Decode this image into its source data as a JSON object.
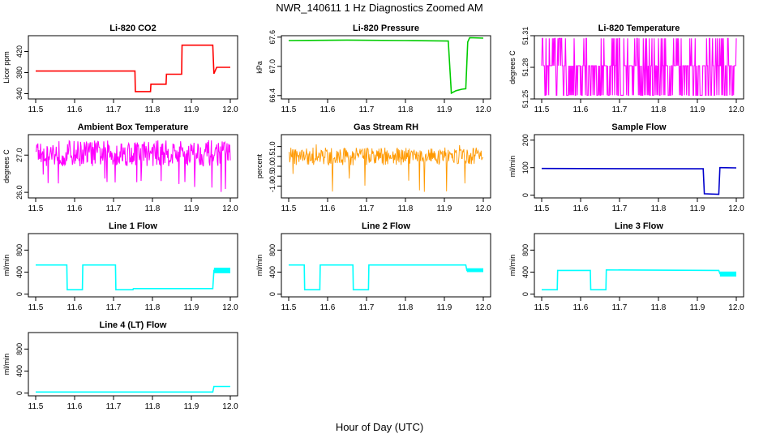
{
  "figure": {
    "title": "NWR_140611  1 Hz Diagnostics Zoomed AM",
    "xlabel": "Hour of Day (UTC)"
  },
  "chart_data": [
    {
      "type": "line",
      "title": "Li-820 CO2",
      "ylabel": "Licor ppm",
      "color": "#ff0000",
      "xlim": [
        11.5,
        12.0
      ],
      "ylim": [
        330,
        450
      ],
      "xticks": [
        "11.5",
        "11.6",
        "11.7",
        "11.8",
        "11.9",
        "12.0"
      ],
      "yticks": [
        {
          "v": 340,
          "label": "340"
        },
        {
          "v": 380,
          "label": "380"
        },
        {
          "v": 420,
          "label": "420"
        }
      ],
      "series": [
        {
          "x": [
            11.5,
            11.755,
            11.756,
            11.795,
            11.796,
            11.835,
            11.836,
            11.875,
            11.876,
            11.955,
            11.958,
            11.965,
            12.0
          ],
          "values": [
            383,
            383,
            344,
            344,
            358,
            358,
            377,
            377,
            432,
            432,
            378,
            390,
            390
          ]
        }
      ]
    },
    {
      "type": "line",
      "title": "Li-820 Pressure",
      "ylabel": "kPa",
      "color": "#00cc00",
      "xlim": [
        11.5,
        12.0
      ],
      "ylim": [
        66.33,
        67.63
      ],
      "xticks": [
        "11.5",
        "11.6",
        "11.7",
        "11.8",
        "11.9",
        "12.0"
      ],
      "yticks": [
        {
          "v": 66.4,
          "label": "66.4"
        },
        {
          "v": 67.0,
          "label": "67.0"
        },
        {
          "v": 67.6,
          "label": "67.6"
        }
      ],
      "series": [
        {
          "x": [
            11.5,
            11.65,
            11.8,
            11.91,
            11.918,
            11.93,
            11.945,
            11.955,
            11.96,
            11.965,
            12.0
          ],
          "values": [
            67.53,
            67.54,
            67.53,
            67.52,
            66.45,
            66.5,
            66.53,
            66.54,
            67.5,
            67.59,
            67.58
          ]
        }
      ]
    },
    {
      "type": "line",
      "title": "Li-820 Temperature",
      "ylabel": "degrees C",
      "color": "#ff00ff",
      "xlim": [
        11.5,
        12.0
      ],
      "ylim": [
        51.25,
        51.31
      ],
      "xticks": [
        "11.5",
        "11.6",
        "11.7",
        "11.8",
        "11.9",
        "12.0"
      ],
      "yticks": [
        {
          "v": 51.25,
          "label": "51.25"
        },
        {
          "v": 51.28,
          "label": "51.28"
        },
        {
          "v": 51.31,
          "label": "51.31"
        }
      ],
      "noise": {
        "levels": [
          51.2535,
          51.2815,
          51.3075
        ]
      }
    },
    {
      "type": "line",
      "title": "Ambient Box Temperature",
      "ylabel": "degrees C",
      "color": "#ff00ff",
      "xlim": [
        11.5,
        12.0
      ],
      "ylim": [
        25.85,
        27.55
      ],
      "xticks": [
        "11.5",
        "11.6",
        "11.7",
        "11.8",
        "11.9",
        "12.0"
      ],
      "yticks": [
        {
          "v": 26.0,
          "label": "26.0"
        },
        {
          "v": 27.0,
          "label": "27.0"
        }
      ],
      "noise": {
        "center": 27.05,
        "spread": 0.35,
        "spike_min": 26.0
      }
    },
    {
      "type": "scatter",
      "title": "Gas Stream RH",
      "ylabel": "percent",
      "color": "#ff9900",
      "xlim": [
        11.5,
        12.0
      ],
      "ylim": [
        -1.6,
        1.6
      ],
      "xticks": [
        "11.5",
        "11.6",
        "11.7",
        "11.8",
        "11.9",
        "12.0"
      ],
      "yticks": [
        {
          "v": -1.0,
          "label": "-1.0"
        },
        {
          "v": -0.5,
          "label": "-0.5"
        },
        {
          "v": 0.0,
          "label": "0.0"
        },
        {
          "v": 0.5,
          "label": "0.5"
        },
        {
          "v": 1.0,
          "label": "1.0"
        }
      ],
      "noise": {
        "center": 0.5,
        "spread": 0.45,
        "spike_min": -1.3,
        "spike_max": 1.3
      }
    },
    {
      "type": "line",
      "title": "Sample Flow",
      "ylabel": "ml/min",
      "color": "#0000cc",
      "xlim": [
        11.5,
        12.0
      ],
      "ylim": [
        -10,
        220
      ],
      "xticks": [
        "11.5",
        "11.6",
        "11.7",
        "11.8",
        "11.9",
        "12.0"
      ],
      "yticks": [
        {
          "v": 0,
          "label": "0"
        },
        {
          "v": 100,
          "label": "100"
        },
        {
          "v": 200,
          "label": "200"
        }
      ],
      "series": [
        {
          "x": [
            11.5,
            11.915,
            11.918,
            11.955,
            11.958,
            12.0
          ],
          "values": [
            97,
            96,
            5,
            3,
            100,
            99
          ]
        }
      ]
    },
    {
      "type": "line",
      "title": "Line 1 Flow",
      "ylabel": "ml/min",
      "color": "#00ffff",
      "xlim": [
        11.5,
        12.0
      ],
      "ylim": [
        -50,
        1100
      ],
      "xticks": [
        "11.5",
        "11.6",
        "11.7",
        "11.8",
        "11.9",
        "12.0"
      ],
      "yticks": [
        {
          "v": 0,
          "label": "0"
        },
        {
          "v": 400,
          "label": "400"
        },
        {
          "v": 800,
          "label": "800"
        }
      ],
      "series": [
        {
          "x": [
            11.5,
            11.58,
            11.581,
            11.62,
            11.621,
            11.705,
            11.706,
            11.75,
            11.751,
            11.955,
            11.958,
            12.0
          ],
          "values": [
            530,
            530,
            80,
            80,
            530,
            530,
            80,
            80,
            100,
            100,
            430,
            430
          ]
        }
      ],
      "band": {
        "from": 11.958,
        "to": 12.0,
        "low": 380,
        "high": 480
      }
    },
    {
      "type": "line",
      "title": "Line 2 Flow",
      "ylabel": "ml/min",
      "color": "#00ffff",
      "xlim": [
        11.5,
        12.0
      ],
      "ylim": [
        -50,
        1100
      ],
      "xticks": [
        "11.5",
        "11.6",
        "11.7",
        "11.8",
        "11.9",
        "12.0"
      ],
      "yticks": [
        {
          "v": 0,
          "label": "0"
        },
        {
          "v": 400,
          "label": "400"
        },
        {
          "v": 800,
          "label": "800"
        }
      ],
      "series": [
        {
          "x": [
            11.5,
            11.54,
            11.541,
            11.58,
            11.581,
            11.665,
            11.666,
            11.705,
            11.706,
            11.955,
            11.958,
            12.0
          ],
          "values": [
            530,
            530,
            80,
            80,
            530,
            530,
            80,
            80,
            530,
            530,
            430,
            430
          ]
        }
      ],
      "band": {
        "from": 11.958,
        "to": 12.0,
        "low": 400,
        "high": 470
      }
    },
    {
      "type": "line",
      "title": "Line 3 Flow",
      "ylabel": "ml/min",
      "color": "#00ffff",
      "xlim": [
        11.5,
        12.0
      ],
      "ylim": [
        -50,
        1100
      ],
      "xticks": [
        "11.5",
        "11.6",
        "11.7",
        "11.8",
        "11.9",
        "12.0"
      ],
      "yticks": [
        {
          "v": 0,
          "label": "0"
        },
        {
          "v": 400,
          "label": "400"
        },
        {
          "v": 800,
          "label": "800"
        }
      ],
      "series": [
        {
          "x": [
            11.5,
            11.54,
            11.541,
            11.625,
            11.626,
            11.665,
            11.666,
            11.955,
            11.958,
            12.0
          ],
          "values": [
            80,
            80,
            430,
            430,
            80,
            80,
            440,
            430,
            370,
            370
          ]
        }
      ],
      "band": {
        "from": 11.958,
        "to": 12.0,
        "low": 320,
        "high": 410
      }
    },
    {
      "type": "line",
      "title": "Line 4 (LT) Flow",
      "ylabel": "ml/min",
      "color": "#00ffff",
      "xlim": [
        11.5,
        12.0
      ],
      "ylim": [
        -50,
        1100
      ],
      "xticks": [
        "11.5",
        "11.6",
        "11.7",
        "11.8",
        "11.9",
        "12.0"
      ],
      "yticks": [
        {
          "v": 0,
          "label": "0"
        },
        {
          "v": 400,
          "label": "400"
        },
        {
          "v": 800,
          "label": "800"
        }
      ],
      "series": [
        {
          "x": [
            11.5,
            11.955,
            11.958,
            12.0
          ],
          "values": [
            20,
            20,
            120,
            120
          ]
        }
      ]
    }
  ]
}
